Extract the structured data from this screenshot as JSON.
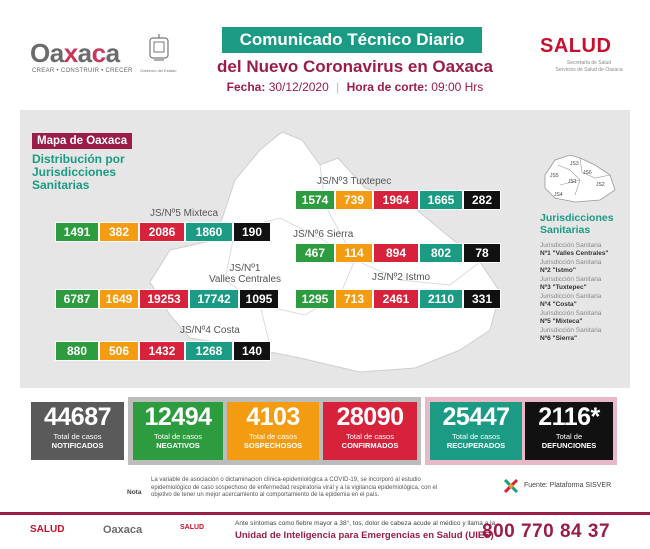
{
  "header": {
    "logo_oax_prefix": "Oa",
    "logo_oax_x": "x",
    "logo_oax_mid": "a",
    "logo_oax_x2": "c",
    "logo_oax_suffix": "a",
    "logo_tagline": "CREAR • CONSTRUIR • CRECER",
    "seal_caption": "Gobierno del Estado",
    "title": "Comunicado Técnico Diario",
    "subtitle": "del Nuevo Coronavirus en Oaxaca",
    "fecha_label": "Fecha:",
    "fecha_value": "30/12/2020",
    "hora_label": "Hora de corte:",
    "hora_value": "09:00 Hrs",
    "salud_logo": "SALUD",
    "salud_sub_1": "Secretaría de Salud",
    "salud_sub_2": "Servicios de Salud de Oaxaca"
  },
  "map": {
    "badge": "Mapa de Oaxaca",
    "subtitle": "Distribución por Jurisdicciones Sanitarias"
  },
  "jurisdictions": [
    {
      "label": "JS/Nº3 Tuxtepec",
      "values": [
        "1574",
        "739",
        "1964",
        "1665",
        "282"
      ]
    },
    {
      "label": "JS/Nº5 Mixteca",
      "values": [
        "1491",
        "382",
        "2086",
        "1860",
        "190"
      ]
    },
    {
      "label": "JS/Nº6 Sierra",
      "values": [
        "467",
        "114",
        "894",
        "802",
        "78"
      ]
    },
    {
      "label_1": "JS/Nº1",
      "label_2": "Valles Centrales",
      "values": [
        "6787",
        "1649",
        "19253",
        "17742",
        "1095"
      ]
    },
    {
      "label": "JS/Nº2 Istmo",
      "values": [
        "1295",
        "713",
        "2461",
        "2110",
        "331"
      ]
    },
    {
      "label": "JS/Nº4 Costa",
      "values": [
        "880",
        "506",
        "1432",
        "1268",
        "140"
      ]
    }
  ],
  "legend": {
    "mini_labels": [
      "JS5",
      "JS3",
      "JS6",
      "JS1",
      "JS2",
      "JS4"
    ],
    "title": "Jurisdicciones Sanitarias",
    "items": [
      {
        "prefix": "Jurisdicción Sanitaria",
        "name": "Nº1 \"Valles Centrales\""
      },
      {
        "prefix": "Jurisdicción Sanitaria",
        "name": "Nº2 \"Istmo\""
      },
      {
        "prefix": "Jurisdicción Sanitaria",
        "name": "Nº3 \"Tuxtepec\""
      },
      {
        "prefix": "Jurisdicción Sanitaria",
        "name": "Nº4 \"Costa\""
      },
      {
        "prefix": "Jurisdicción Sanitaria",
        "name": "Nº5 \"Mixteca\""
      },
      {
        "prefix": "Jurisdicción Sanitaria",
        "name": "Nº6 \"Sierra\""
      }
    ]
  },
  "totals": [
    {
      "value": "44687",
      "label_1": "Total de casos",
      "label_2": "NOTIFICADOS",
      "color": "#5a5a5a"
    },
    {
      "value": "12494",
      "label_1": "Total de casos",
      "label_2": "NEGATIVOS",
      "color": "#2d9c3e"
    },
    {
      "value": "4103",
      "label_1": "Total de casos",
      "label_2": "SOSPECHOSOS",
      "color": "#f39c12"
    },
    {
      "value": "28090",
      "label_1": "Total de casos",
      "label_2": "CONFIRMADOS",
      "color": "#d6223b"
    },
    {
      "value": "25447",
      "label_1": "Total de casos",
      "label_2": "RECUPERADOS",
      "color": "#1b9b84"
    },
    {
      "value": "2116*",
      "label_1": "Total de",
      "label_2": "DEFUNCIONES",
      "color": "#111111"
    }
  ],
  "note": {
    "label": "Nota",
    "text": "La variable de asociación o dictaminacion clínica-epidemiológica a COVID-19, se incorporó al estudio epidemiológico de caso sospechoso de enfermedad respiratoria viral y a la vigilancia epidemiológica, con el objetivo de tener un mejor acercamiento al comportamiento de la epidemia en el país.",
    "source": "Fuente: Plataforma SISVER"
  },
  "footer": {
    "salud": "SALUD",
    "oaxaca": "Oaxaca",
    "salud2": "SALUD",
    "small_text": "Ante síntomas como fiebre mayor a 38°, tos, dolor de cabeza acude al médico y llama a la",
    "unit_text": "Unidad de Inteligencia para Emergencias en Salud (UIES)",
    "phone": "800 770 84 37"
  }
}
